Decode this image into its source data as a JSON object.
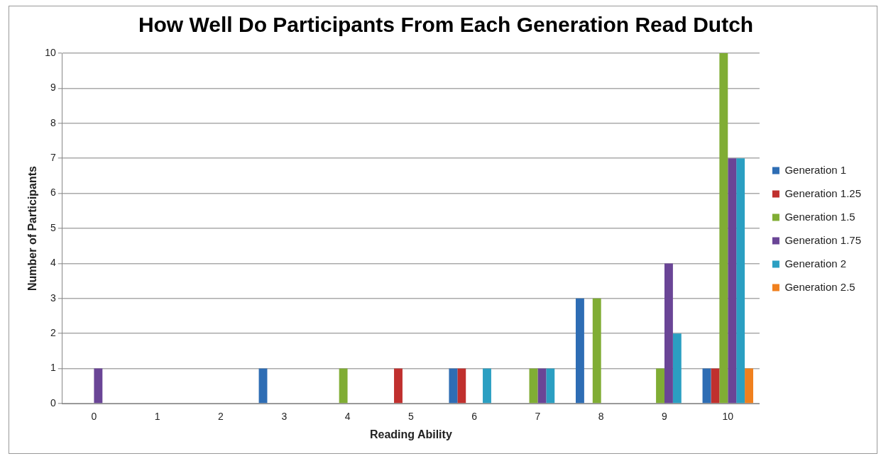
{
  "chart_data": {
    "type": "bar",
    "title": "How Well Do Participants From Each Generation Read Dutch",
    "xlabel": "Reading Ability",
    "ylabel": "Number of Participants",
    "categories": [
      "0",
      "1",
      "2",
      "3",
      "4",
      "5",
      "6",
      "7",
      "8",
      "9",
      "10"
    ],
    "series": [
      {
        "name": "Generation 1",
        "color": "#2e6db4",
        "values": [
          0,
          0,
          0,
          1,
          0,
          0,
          1,
          0,
          3,
          0,
          1
        ]
      },
      {
        "name": "Generation 1.25",
        "color": "#c0302e",
        "values": [
          0,
          0,
          0,
          0,
          0,
          1,
          1,
          0,
          0,
          0,
          1
        ]
      },
      {
        "name": "Generation 1.5",
        "color": "#80ad34",
        "values": [
          0,
          0,
          0,
          0,
          1,
          0,
          0,
          1,
          3,
          1,
          10
        ]
      },
      {
        "name": "Generation 1.75",
        "color": "#6a4596",
        "values": [
          1,
          0,
          0,
          0,
          0,
          0,
          0,
          1,
          0,
          4,
          7
        ]
      },
      {
        "name": "Generation 2",
        "color": "#2b9fc2",
        "values": [
          0,
          0,
          0,
          0,
          0,
          0,
          1,
          1,
          0,
          2,
          7
        ]
      },
      {
        "name": "Generation 2.5",
        "color": "#f0801e",
        "values": [
          0,
          0,
          0,
          0,
          0,
          0,
          0,
          0,
          0,
          0,
          1
        ]
      }
    ],
    "ylim": [
      0,
      10
    ],
    "yticks": [
      0,
      1,
      2,
      3,
      4,
      5,
      6,
      7,
      8,
      9,
      10
    ],
    "grid": "y",
    "legend": "right"
  }
}
